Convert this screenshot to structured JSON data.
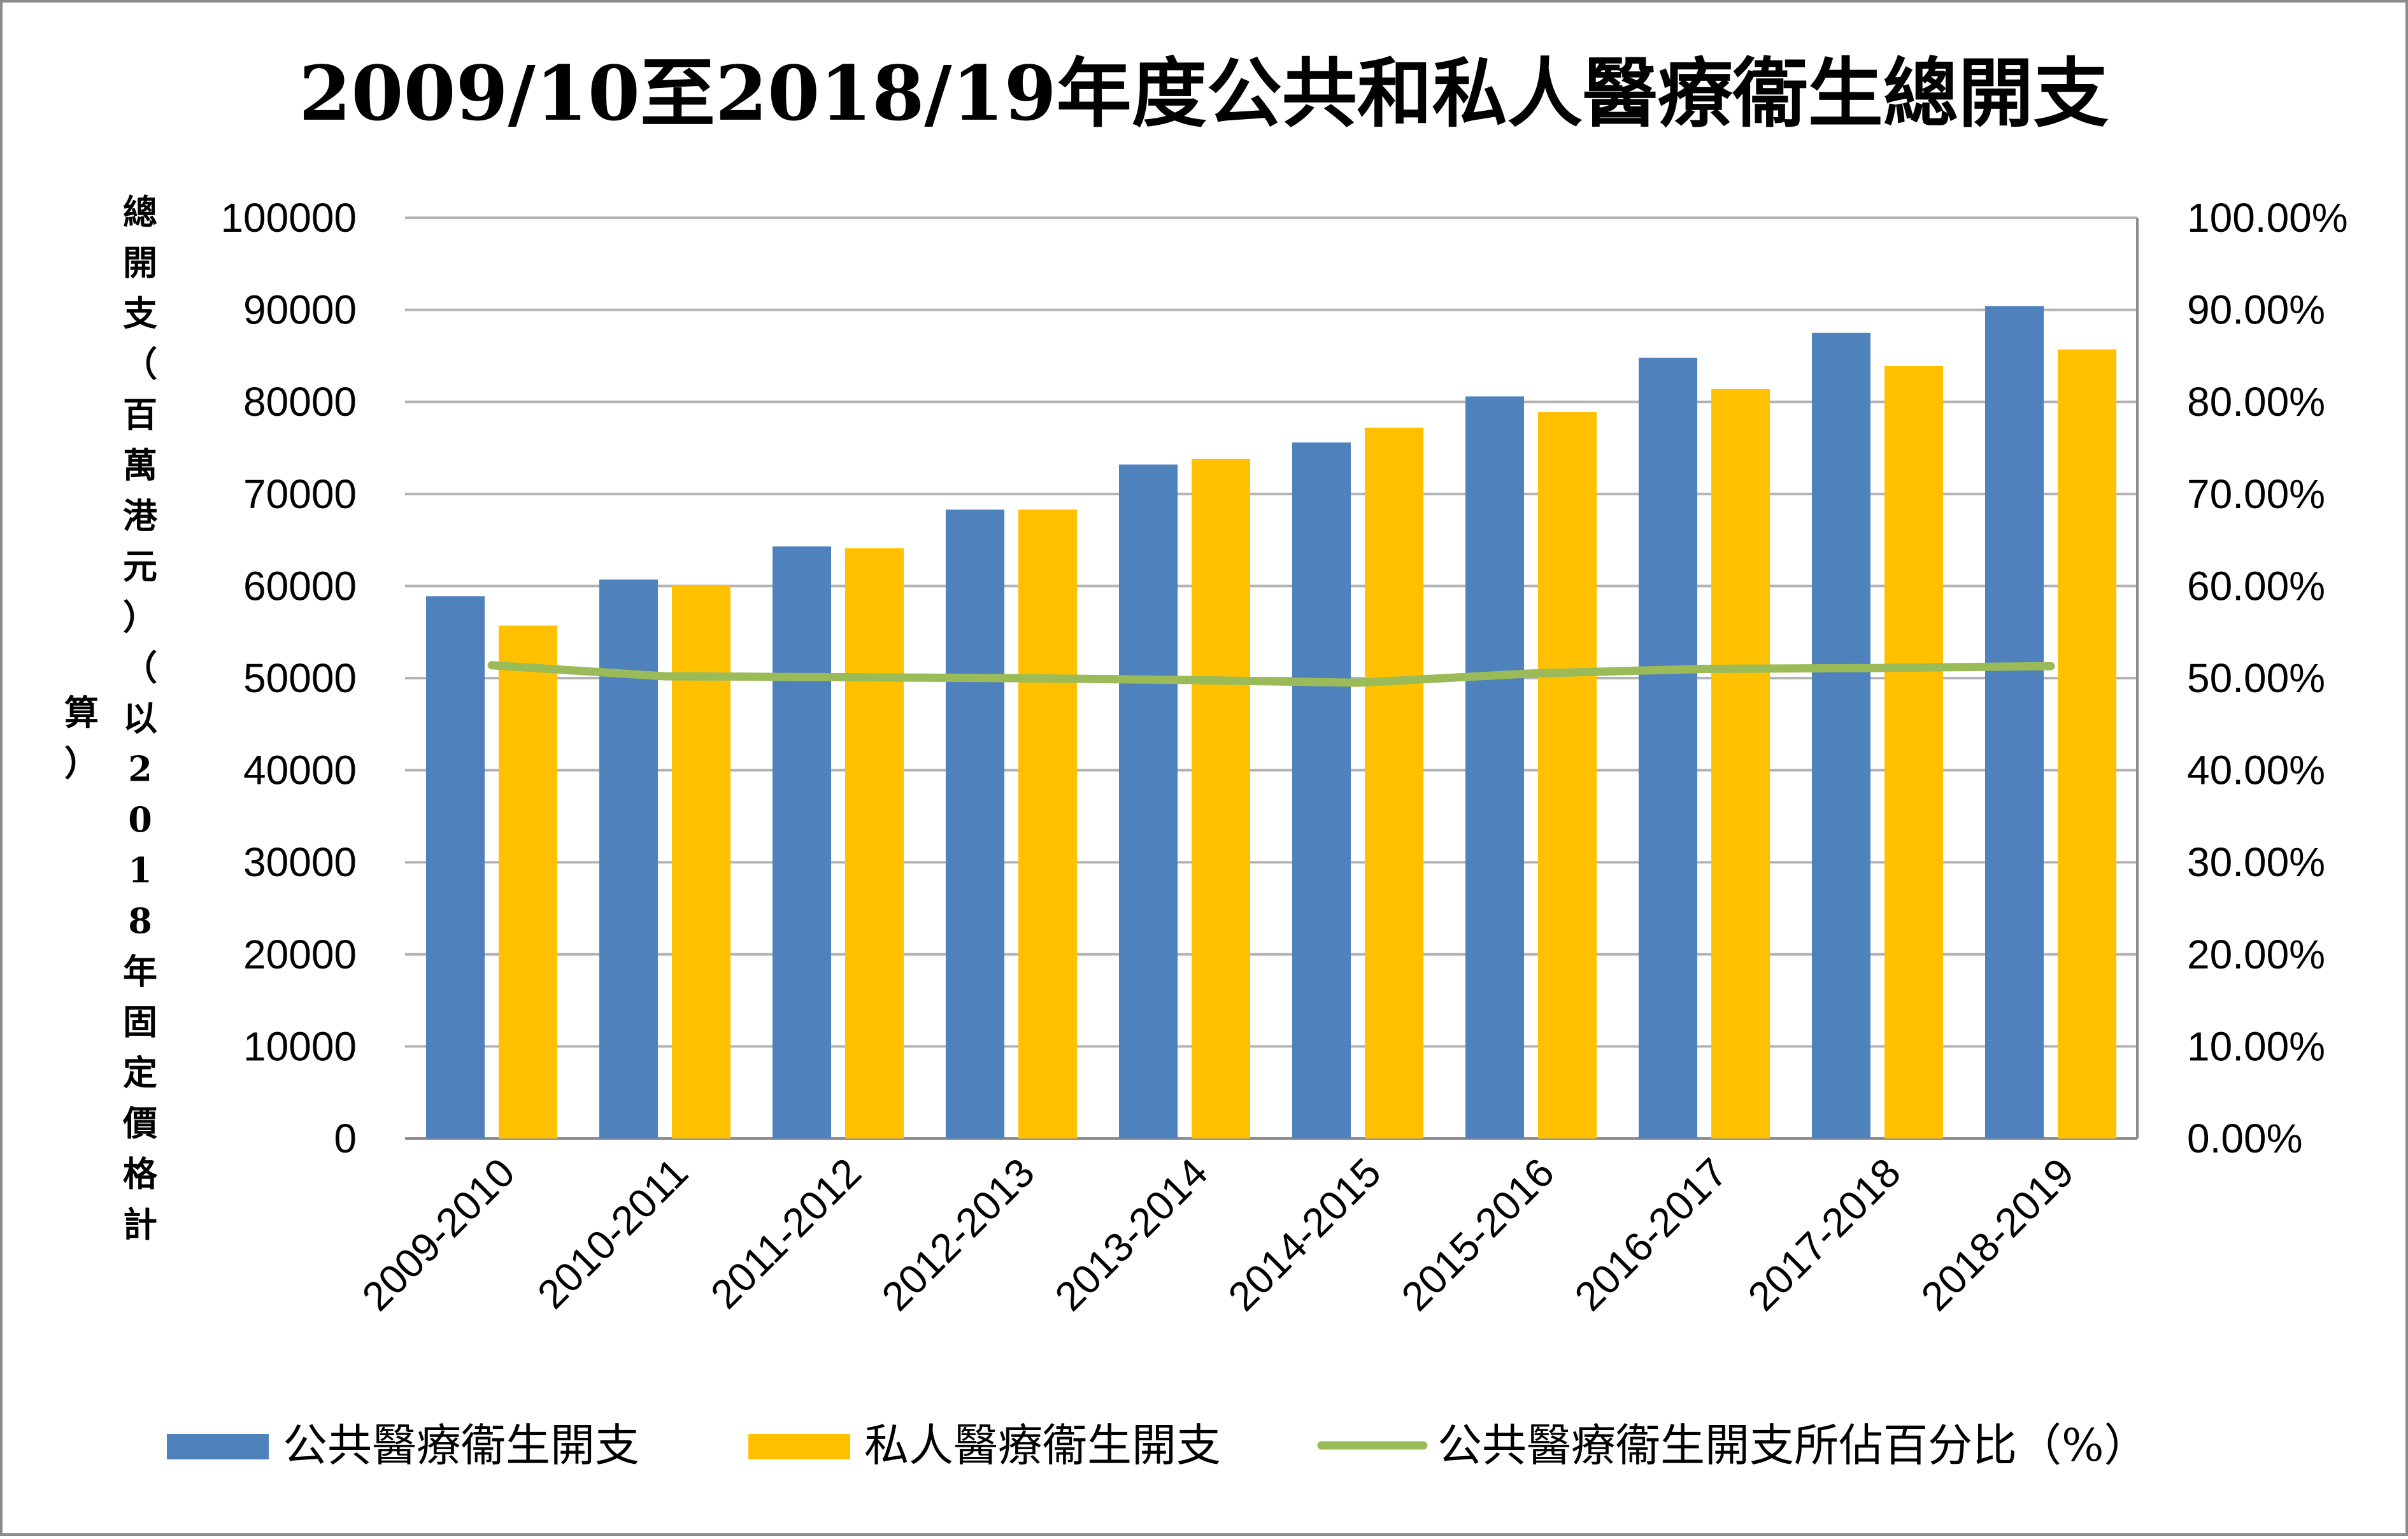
{
  "chart_data": {
    "type": "bar",
    "title": "2009/10至2018/19年度公共和私人醫療衞生總開支",
    "ylabel": "總開支（百萬港元）（以2018年固定價格計算）",
    "ylabel_col1": "總開支（百萬港元）（以2018年固定價格計",
    "ylabel_col2": "算）",
    "categories": [
      "2009-2010",
      "2010-2011",
      "2011-2012",
      "2012-2013",
      "2013-2014",
      "2014-2015",
      "2015-2016",
      "2016-2017",
      "2017-2018",
      "2018-2019"
    ],
    "series": [
      {
        "name": "公共醫療衞生開支",
        "kind": "bar",
        "axis": "left",
        "color": "#4F81BD",
        "values": [
          58900,
          60700,
          64300,
          68300,
          73200,
          75600,
          80600,
          84800,
          87500,
          90400
        ]
      },
      {
        "name": "私人醫療衞生開支",
        "kind": "bar",
        "axis": "right-hand series none",
        "color": "#FFC000",
        "values": [
          55700,
          60100,
          64100,
          68300,
          73800,
          77200,
          78900,
          81400,
          83900,
          85700
        ]
      },
      {
        "name": "公共醫療衞生開支所佔百分比（%）",
        "kind": "line",
        "axis": "right",
        "color": "#9BBB59",
        "values": [
          51.4,
          50.2,
          50.1,
          50.0,
          49.8,
          49.5,
          50.5,
          51.0,
          51.1,
          51.3
        ]
      }
    ],
    "ylim": [
      0,
      100000
    ],
    "y2lim": [
      0,
      100
    ],
    "yticks": [
      "0",
      "10000",
      "20000",
      "30000",
      "40000",
      "50000",
      "60000",
      "70000",
      "80000",
      "90000",
      "100000"
    ],
    "y2ticks": [
      "0.00%",
      "10.00%",
      "20.00%",
      "30.00%",
      "40.00%",
      "50.00%",
      "60.00%",
      "70.00%",
      "80.00%",
      "90.00%",
      "100.00%"
    ],
    "grid": true,
    "legend": "bottom"
  }
}
